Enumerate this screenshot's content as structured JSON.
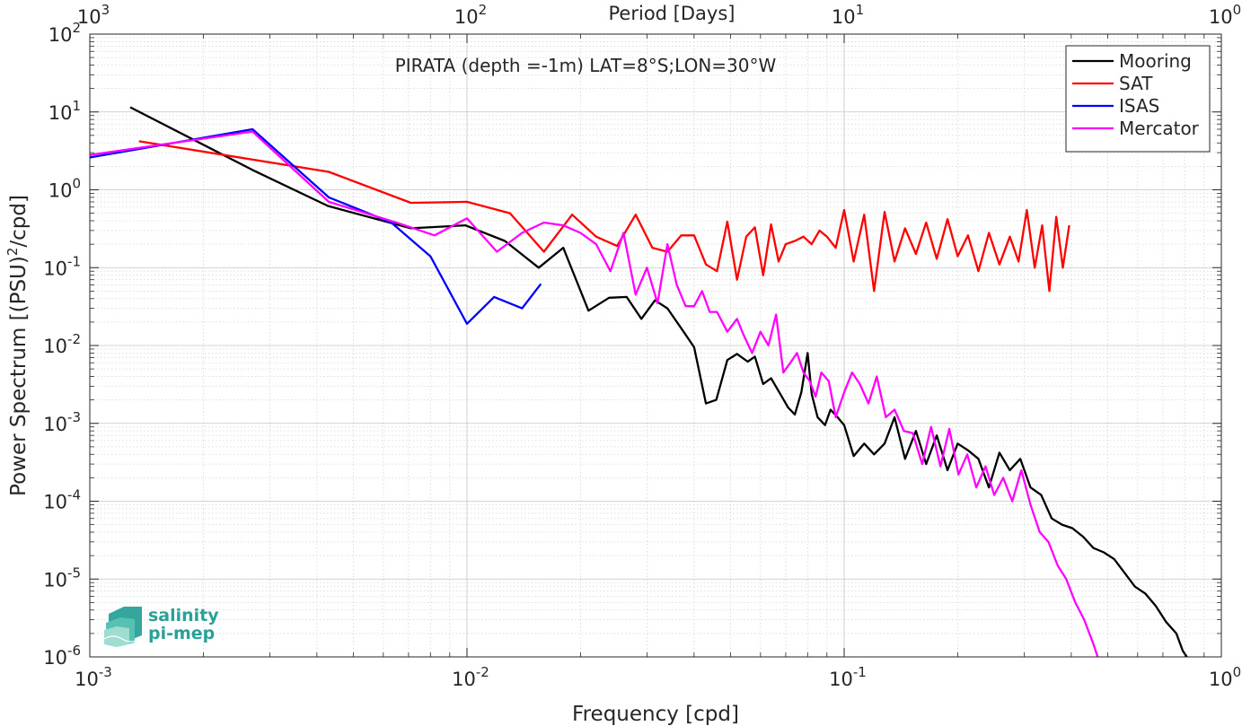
{
  "chart_data": {
    "type": "line",
    "title": "PIRATA (depth =-1m) LAT=8°S;LON=30°W",
    "xlabel": "Frequency [cpd]",
    "ylabel": "Power Spectrum [(PSU)²/cpd]",
    "ylabel_parts": {
      "main": "Power Spectrum [(PSU)",
      "sup": "2",
      "tail": "/cpd]"
    },
    "top_xlabel": "Period [Days]",
    "xscale": "log",
    "yscale": "log",
    "xlim": [
      0.001,
      1
    ],
    "ylim": [
      1e-06,
      100
    ],
    "grid": true,
    "legend_position": "top-right",
    "x_ticks": [
      {
        "value": 0.001,
        "base": "10",
        "exp": "-3"
      },
      {
        "value": 0.01,
        "base": "10",
        "exp": "-2"
      },
      {
        "value": 0.1,
        "base": "10",
        "exp": "-1"
      },
      {
        "value": 1,
        "base": "10",
        "exp": "0"
      }
    ],
    "top_ticks": [
      {
        "value": 0.001,
        "base": "10",
        "exp": "3"
      },
      {
        "value": 0.01,
        "base": "10",
        "exp": "2"
      },
      {
        "value": 0.1,
        "base": "10",
        "exp": "1"
      },
      {
        "value": 1,
        "base": "10",
        "exp": "0"
      }
    ],
    "y_ticks": [
      {
        "value": 100,
        "base": "10",
        "exp": "2"
      },
      {
        "value": 10,
        "base": "10",
        "exp": "1"
      },
      {
        "value": 1,
        "base": "10",
        "exp": "0"
      },
      {
        "value": 0.1,
        "base": "10",
        "exp": "-1"
      },
      {
        "value": 0.01,
        "base": "10",
        "exp": "-2"
      },
      {
        "value": 0.001,
        "base": "10",
        "exp": "-3"
      },
      {
        "value": 0.0001,
        "base": "10",
        "exp": "-4"
      },
      {
        "value": 1e-05,
        "base": "10",
        "exp": "-5"
      },
      {
        "value": 1e-06,
        "base": "10",
        "exp": "-6"
      }
    ],
    "series": [
      {
        "name": "Mooring",
        "color": "#000000",
        "x": [
          0.00128,
          0.0027,
          0.00428,
          0.0071,
          0.0099,
          0.0126,
          0.0155,
          0.018,
          0.021,
          0.0238,
          0.0265,
          0.029,
          0.0315,
          0.034,
          0.0372,
          0.04,
          0.043,
          0.0458,
          0.049,
          0.052,
          0.0555,
          0.058,
          0.061,
          0.064,
          0.068,
          0.071,
          0.074,
          0.077,
          0.08,
          0.082,
          0.085,
          0.089,
          0.092,
          0.096,
          0.1,
          0.106,
          0.113,
          0.12,
          0.128,
          0.136,
          0.145,
          0.155,
          0.165,
          0.176,
          0.188,
          0.2,
          0.213,
          0.227,
          0.242,
          0.258,
          0.275,
          0.293,
          0.312,
          0.333,
          0.355,
          0.378,
          0.403,
          0.43,
          0.458,
          0.488,
          0.52,
          0.554,
          0.59,
          0.629,
          0.67,
          0.714,
          0.76,
          0.79,
          0.81
        ],
        "values": [
          11.5,
          1.8,
          0.62,
          0.32,
          0.35,
          0.22,
          0.1,
          0.18,
          0.028,
          0.041,
          0.042,
          0.022,
          0.038,
          0.03,
          0.016,
          0.0095,
          0.0018,
          0.002,
          0.0065,
          0.0078,
          0.0062,
          0.0072,
          0.0032,
          0.0038,
          0.0023,
          0.0016,
          0.0013,
          0.0025,
          0.008,
          0.0024,
          0.0012,
          0.00095,
          0.0015,
          0.0012,
          0.00095,
          0.00038,
          0.00055,
          0.0004,
          0.00055,
          0.0012,
          0.00035,
          0.0008,
          0.0003,
          0.0007,
          0.00025,
          0.00055,
          0.00045,
          0.00035,
          0.00015,
          0.00042,
          0.00025,
          0.00035,
          0.00015,
          0.00012,
          6e-05,
          5e-05,
          4.5e-05,
          3.5e-05,
          2.5e-05,
          2.2e-05,
          1.8e-05,
          1.2e-05,
          8e-06,
          6.5e-06,
          4.5e-06,
          2.8e-06,
          2e-06,
          1.2e-06,
          1e-06
        ]
      },
      {
        "name": "SAT",
        "color": "#ff0000",
        "x": [
          0.00135,
          0.0043,
          0.0071,
          0.01,
          0.013,
          0.016,
          0.019,
          0.022,
          0.025,
          0.028,
          0.031,
          0.034,
          0.037,
          0.04,
          0.043,
          0.046,
          0.049,
          0.052,
          0.055,
          0.058,
          0.061,
          0.064,
          0.067,
          0.07,
          0.074,
          0.078,
          0.082,
          0.086,
          0.09,
          0.095,
          0.1,
          0.106,
          0.113,
          0.12,
          0.128,
          0.136,
          0.145,
          0.155,
          0.165,
          0.176,
          0.188,
          0.2,
          0.213,
          0.227,
          0.242,
          0.258,
          0.275,
          0.29,
          0.305,
          0.32,
          0.335,
          0.35,
          0.365,
          0.38,
          0.395
        ],
        "values": [
          4.2,
          1.7,
          0.68,
          0.7,
          0.5,
          0.16,
          0.48,
          0.25,
          0.19,
          0.48,
          0.18,
          0.16,
          0.26,
          0.26,
          0.11,
          0.09,
          0.39,
          0.07,
          0.25,
          0.33,
          0.08,
          0.36,
          0.12,
          0.2,
          0.22,
          0.25,
          0.2,
          0.3,
          0.25,
          0.18,
          0.55,
          0.12,
          0.48,
          0.05,
          0.52,
          0.12,
          0.32,
          0.15,
          0.38,
          0.13,
          0.42,
          0.14,
          0.26,
          0.09,
          0.28,
          0.11,
          0.25,
          0.12,
          0.55,
          0.1,
          0.35,
          0.05,
          0.45,
          0.1,
          0.35
        ]
      },
      {
        "name": "ISAS",
        "color": "#0000ff",
        "x": [
          0.001,
          0.0027,
          0.0043,
          0.0063,
          0.008,
          0.01,
          0.0118,
          0.014,
          0.0157
        ],
        "values": [
          2.6,
          6.0,
          0.8,
          0.38,
          0.14,
          0.019,
          0.042,
          0.03,
          0.062
        ]
      },
      {
        "name": "Mercator",
        "color": "#ff00ff",
        "x": [
          0.001,
          0.0027,
          0.0043,
          0.0065,
          0.0082,
          0.01,
          0.012,
          0.014,
          0.016,
          0.018,
          0.02,
          0.022,
          0.024,
          0.026,
          0.028,
          0.03,
          0.032,
          0.034,
          0.036,
          0.038,
          0.04,
          0.042,
          0.044,
          0.046,
          0.049,
          0.052,
          0.054,
          0.057,
          0.06,
          0.063,
          0.066,
          0.069,
          0.072,
          0.075,
          0.078,
          0.081,
          0.084,
          0.087,
          0.091,
          0.095,
          0.1,
          0.105,
          0.11,
          0.116,
          0.122,
          0.129,
          0.136,
          0.144,
          0.152,
          0.161,
          0.17,
          0.18,
          0.19,
          0.201,
          0.212,
          0.224,
          0.237,
          0.25,
          0.264,
          0.279,
          0.295,
          0.312,
          0.33,
          0.348,
          0.368,
          0.388,
          0.41,
          0.433,
          0.457,
          0.47
        ],
        "values": [
          2.8,
          5.6,
          0.7,
          0.38,
          0.26,
          0.43,
          0.16,
          0.28,
          0.38,
          0.35,
          0.28,
          0.2,
          0.09,
          0.28,
          0.045,
          0.1,
          0.035,
          0.2,
          0.06,
          0.032,
          0.032,
          0.05,
          0.027,
          0.027,
          0.015,
          0.022,
          0.014,
          0.008,
          0.015,
          0.01,
          0.025,
          0.0045,
          0.006,
          0.008,
          0.0045,
          0.0035,
          0.0022,
          0.0045,
          0.0035,
          0.0012,
          0.0025,
          0.0045,
          0.0032,
          0.0018,
          0.004,
          0.0012,
          0.0015,
          0.0008,
          0.00075,
          0.0003,
          0.0009,
          0.00028,
          0.00085,
          0.00022,
          0.0004,
          0.00015,
          0.00028,
          0.00012,
          0.0002,
          0.0001,
          0.00025,
          9e-05,
          4e-05,
          3e-05,
          1.5e-05,
          1e-05,
          5e-06,
          3e-06,
          1.5e-06,
          1e-06
        ]
      }
    ]
  },
  "logo": {
    "line1": "salinity",
    "line2": "pi-mep",
    "color": "#2aa198"
  }
}
